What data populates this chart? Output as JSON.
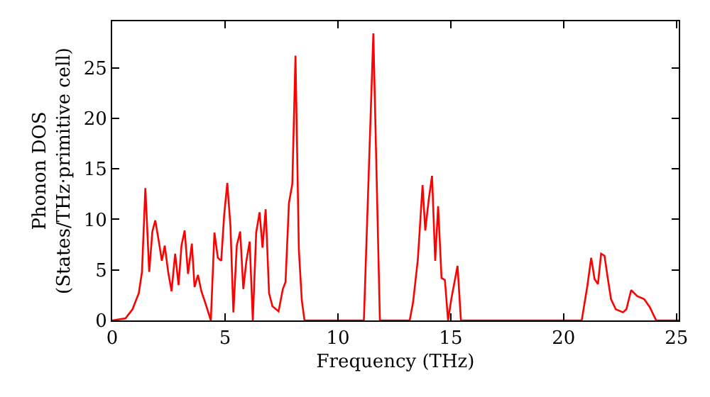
{
  "chart_data": {
    "type": "line",
    "xlabel": "Frequency (THz)",
    "ylabel": "Phonon DOS\n(States/THz·primitive cell)",
    "x": [
      0,
      0.59,
      0.9,
      1.18,
      1.32,
      1.47,
      1.64,
      1.78,
      1.91,
      2.06,
      2.2,
      2.33,
      2.48,
      2.63,
      2.79,
      2.94,
      3.07,
      3.21,
      3.36,
      3.53,
      3.65,
      3.8,
      3.95,
      4.16,
      4.37,
      4.53,
      4.68,
      4.83,
      4.96,
      5.1,
      5.24,
      5.37,
      5.52,
      5.67,
      5.81,
      5.94,
      6.09,
      6.23,
      6.38,
      6.53,
      6.66,
      6.8,
      6.95,
      7.1,
      7.37,
      7.56,
      7.68,
      7.83,
      7.98,
      8.12,
      8.27,
      8.4,
      8.52,
      11.15,
      11.57,
      11.86,
      13.18,
      13.33,
      13.54,
      13.75,
      13.87,
      14.02,
      14.17,
      14.31,
      14.44,
      14.59,
      14.74,
      14.88,
      15.03,
      15.3,
      15.45,
      20.8,
      21.05,
      21.22,
      21.37,
      21.52,
      21.66,
      21.81,
      21.96,
      22.1,
      22.31,
      22.63,
      22.78,
      22.99,
      23.26,
      23.57,
      23.82,
      24.1,
      25.1
    ],
    "series": [
      {
        "color": "#ff0000",
        "values": [
          0,
          0.2,
          1.1,
          2.7,
          4.8,
          13.1,
          4.8,
          8.8,
          9.9,
          7.9,
          5.9,
          7.4,
          4.8,
          2.9,
          6.6,
          3.5,
          7.4,
          8.9,
          4.6,
          7.6,
          3.3,
          4.5,
          2.9,
          1.5,
          0,
          8.7,
          6.2,
          5.9,
          10.4,
          13.6,
          9.3,
          0.8,
          7.4,
          8.8,
          3.1,
          5.8,
          7.8,
          0,
          8.7,
          10.7,
          7.2,
          11.0,
          2.7,
          1.4,
          0.9,
          3.1,
          3.8,
          11.6,
          13.5,
          26.2,
          7.0,
          2.0,
          0,
          0,
          28.4,
          0,
          0,
          1.8,
          6.0,
          13.4,
          8.9,
          11.9,
          14.3,
          5.9,
          11.3,
          4.2,
          4.0,
          0,
          2.2,
          5.4,
          0,
          0,
          3.4,
          6.2,
          4.1,
          3.6,
          6.6,
          6.4,
          4.1,
          2.1,
          1.1,
          0.8,
          1.1,
          3.0,
          2.4,
          2.1,
          1.3,
          0,
          0
        ]
      }
    ],
    "xlim": [
      0,
      25.1
    ],
    "ylim": [
      0,
      29.6
    ],
    "xticks": [
      0,
      5,
      10,
      15,
      20,
      25
    ],
    "yticks": [
      0,
      5,
      10,
      15,
      20,
      25
    ],
    "legend": false,
    "marker": "none",
    "line_style": "solid"
  }
}
